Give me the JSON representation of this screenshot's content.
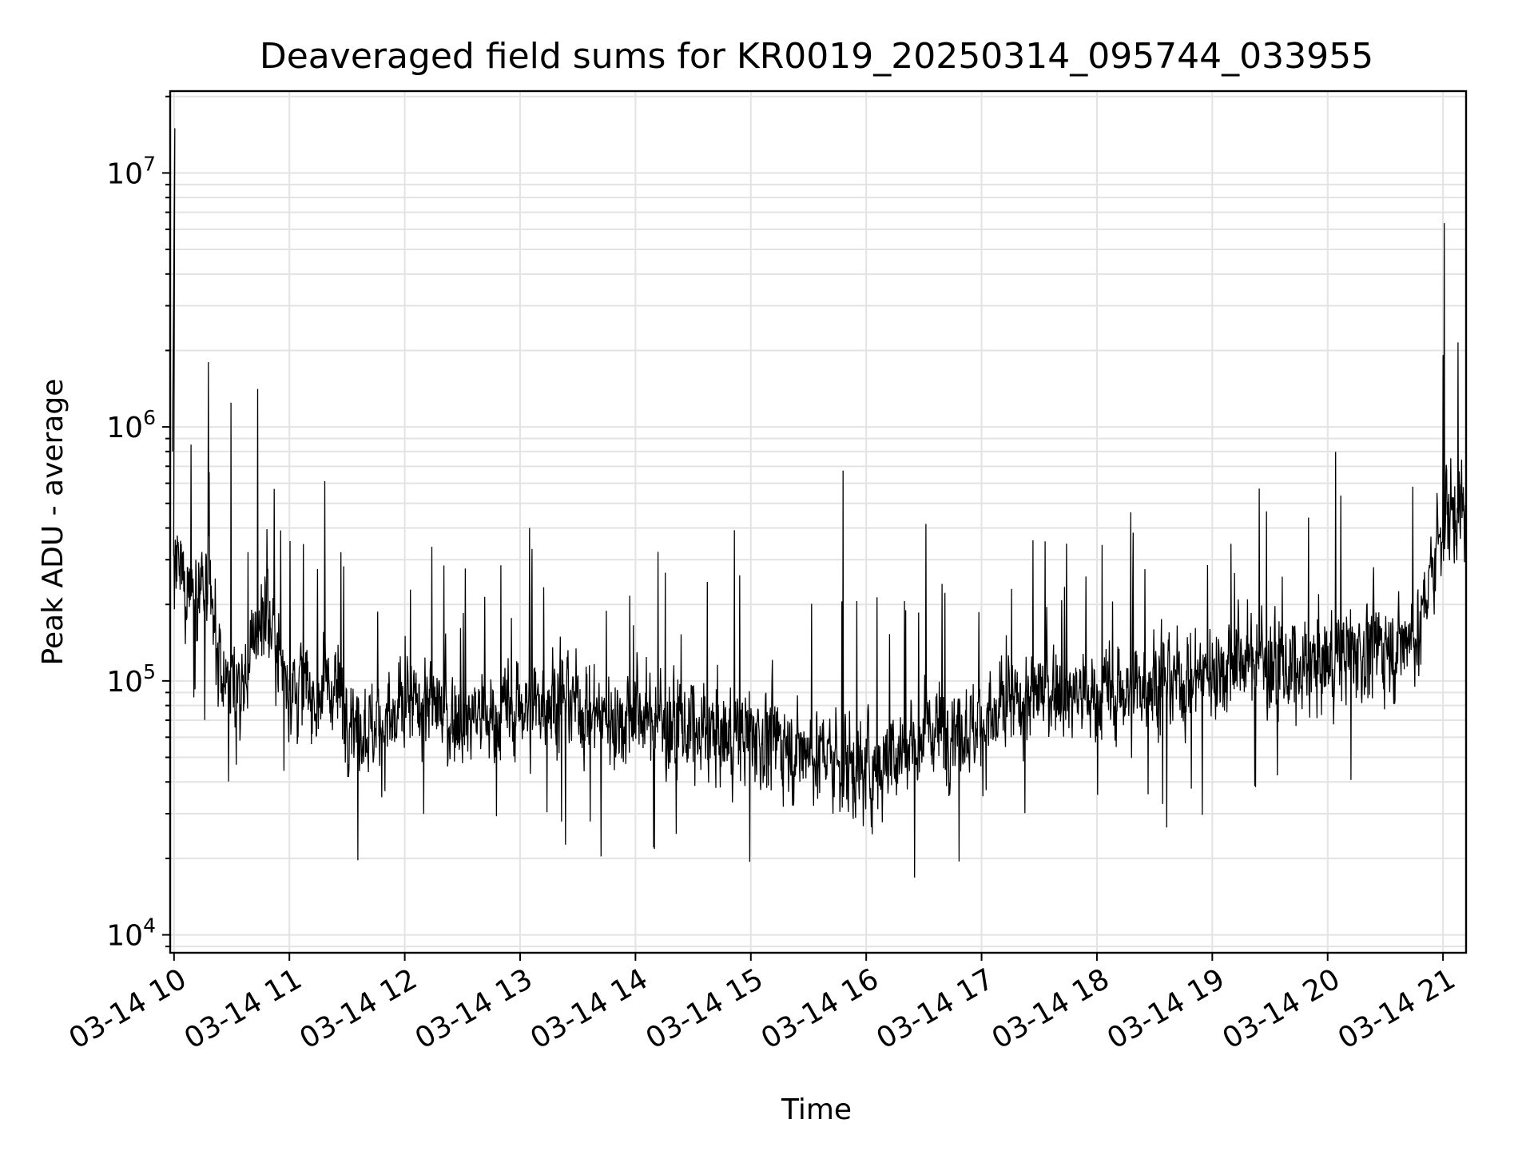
{
  "chart_data": {
    "type": "line",
    "title": "Deaveraged field sums for KR0019_20250314_095744_033955",
    "xlabel": "Time",
    "ylabel": "Peak ADU - average",
    "y_scale": "log",
    "ylim": [
      8500,
      21000000
    ],
    "xlim": [
      "2025-03-14 09:58",
      "2025-03-14 21:12"
    ],
    "grid": true,
    "x_tick_labels": [
      "03-14 10",
      "03-14 11",
      "03-14 12",
      "03-14 13",
      "03-14 14",
      "03-14 15",
      "03-14 16",
      "03-14 17",
      "03-14 18",
      "03-14 19",
      "03-14 20",
      "03-14 21"
    ],
    "x_tick_hours": [
      10,
      11,
      12,
      13,
      14,
      15,
      16,
      17,
      18,
      19,
      20,
      21
    ],
    "y_ticks": [
      {
        "value": 10000,
        "base": "10",
        "exp": "4"
      },
      {
        "value": 100000,
        "base": "10",
        "exp": "5"
      },
      {
        "value": 1000000,
        "base": "10",
        "exp": "6"
      },
      {
        "value": 10000000,
        "base": "10",
        "exp": "7"
      }
    ],
    "line_color": "#000000",
    "series": [
      {
        "values_description_free": true,
        "x_hours": [
          10.0,
          10.1,
          10.2,
          10.3,
          10.4,
          10.5,
          10.6,
          10.7,
          10.8,
          10.9,
          11.0,
          11.2,
          11.4,
          11.6,
          11.8,
          12.0,
          12.2,
          12.4,
          12.6,
          12.8,
          13.0,
          13.2,
          13.4,
          13.6,
          13.8,
          14.0,
          14.2,
          14.4,
          14.6,
          14.8,
          15.0,
          15.2,
          15.4,
          15.6,
          15.8,
          16.0,
          16.2,
          16.4,
          16.6,
          16.8,
          17.0,
          17.2,
          17.4,
          17.6,
          17.8,
          18.0,
          18.2,
          18.4,
          18.6,
          18.8,
          19.0,
          19.2,
          19.4,
          19.6,
          19.8,
          20.0,
          20.2,
          20.4,
          20.6,
          20.8,
          21.0,
          21.2
        ],
        "y_median": [
          260000,
          240000,
          230000,
          200000,
          110000,
          95000,
          90000,
          150000,
          200000,
          130000,
          100000,
          90000,
          95000,
          70000,
          65000,
          75000,
          85000,
          70000,
          75000,
          70000,
          80000,
          85000,
          90000,
          75000,
          70000,
          75000,
          70000,
          65000,
          60000,
          60000,
          62000,
          58000,
          55000,
          52000,
          48000,
          45000,
          50000,
          60000,
          65000,
          70000,
          65000,
          75000,
          85000,
          95000,
          90000,
          85000,
          90000,
          100000,
          105000,
          100000,
          110000,
          120000,
          125000,
          110000,
          105000,
          120000,
          130000,
          135000,
          140000,
          160000,
          450000,
          500000
        ]
      }
    ]
  }
}
